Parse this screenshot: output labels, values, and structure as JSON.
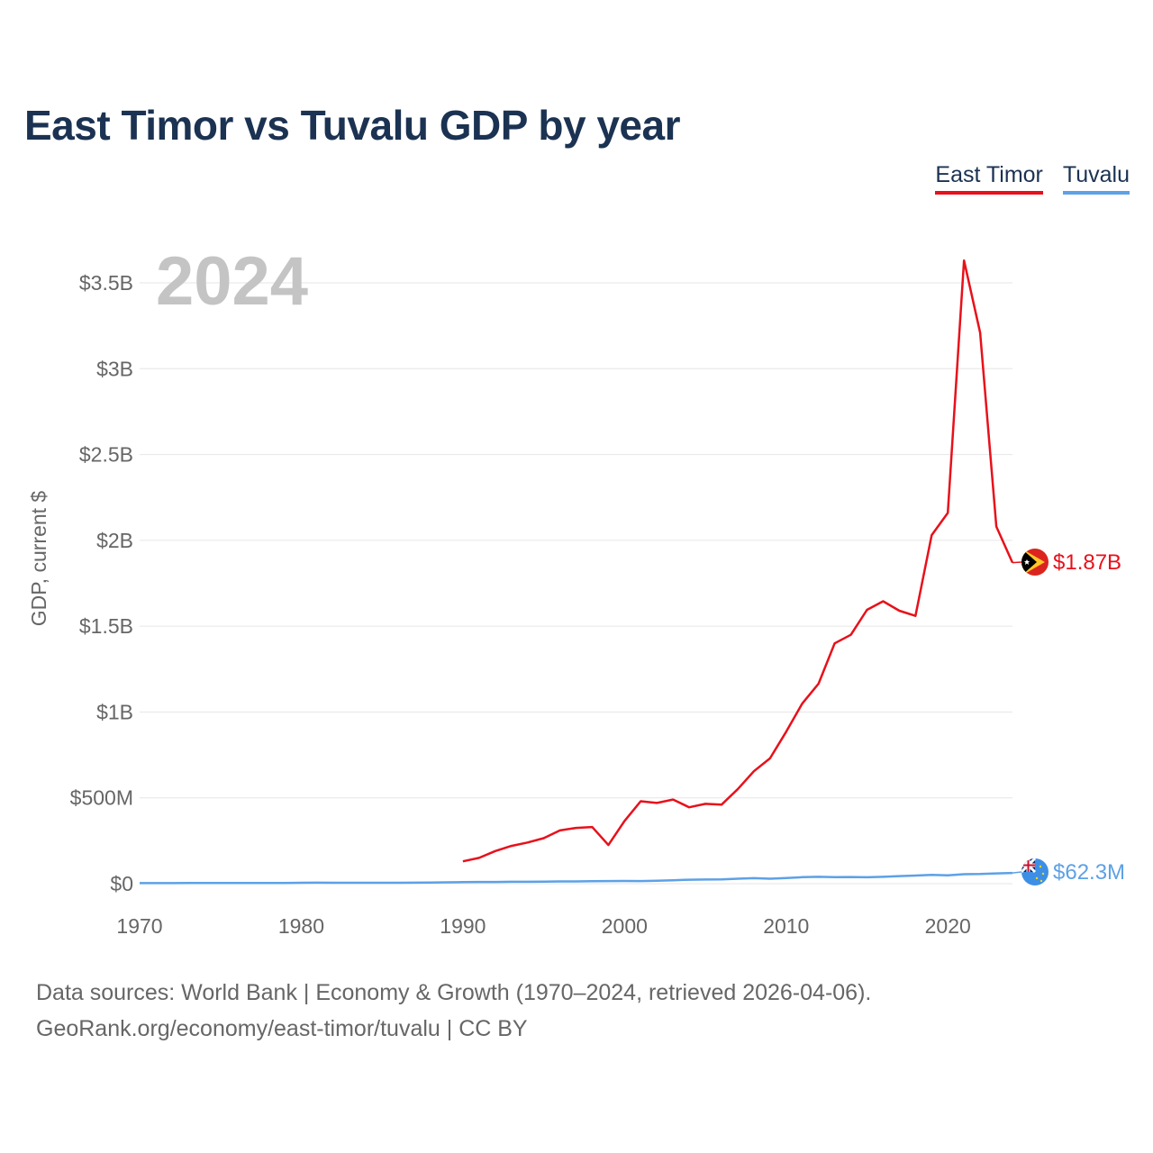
{
  "title": "East Timor vs Tuvalu GDP by year",
  "legend": [
    {
      "label": "East Timor",
      "color": "#e8101a"
    },
    {
      "label": "Tuvalu",
      "color": "#5da1e6"
    }
  ],
  "year_label": "2024",
  "end_labels": {
    "east_timor": "$1.87B",
    "tuvalu": "$62.3M"
  },
  "flags": {
    "east_timor": "east-timor-flag-icon",
    "tuvalu": "tuvalu-flag-icon"
  },
  "source": {
    "line1": "Data sources: World Bank | Economy & Growth (1970–2024, retrieved 2026-04-06).",
    "line2": "GeoRank.org/economy/east-timor/tuvalu | CC BY"
  },
  "chart_data": {
    "type": "line",
    "ylabel": "GDP, current $",
    "xlim": [
      1970,
      2024
    ],
    "ylim": [
      0,
      3500
    ],
    "y_unit": "million USD",
    "x_ticks": [
      {
        "value": 1970,
        "label": "1970"
      },
      {
        "value": 1980,
        "label": "1980"
      },
      {
        "value": 1990,
        "label": "1990"
      },
      {
        "value": 2000,
        "label": "2000"
      },
      {
        "value": 2010,
        "label": "2010"
      },
      {
        "value": 2020,
        "label": "2020"
      }
    ],
    "y_ticks": [
      {
        "value": 0,
        "label": "$0"
      },
      {
        "value": 500,
        "label": "$500M"
      },
      {
        "value": 1000,
        "label": "$1B"
      },
      {
        "value": 1500,
        "label": "$1.5B"
      },
      {
        "value": 2000,
        "label": "$2B"
      },
      {
        "value": 2500,
        "label": "$2.5B"
      },
      {
        "value": 3000,
        "label": "$3B"
      },
      {
        "value": 3500,
        "label": "$3.5B"
      }
    ],
    "series": [
      {
        "name": "East Timor",
        "key": "east_timor",
        "color": "#e8101a",
        "x": [
          1990,
          1991,
          1992,
          1993,
          1994,
          1995,
          1996,
          1997,
          1998,
          1999,
          2000,
          2001,
          2002,
          2003,
          2004,
          2005,
          2006,
          2007,
          2008,
          2009,
          2010,
          2011,
          2012,
          2013,
          2014,
          2015,
          2016,
          2017,
          2018,
          2019,
          2020,
          2021,
          2022,
          2023,
          2024
        ],
        "values": [
          130,
          150,
          190,
          220,
          240,
          265,
          310,
          325,
          330,
          225,
          365,
          480,
          470,
          490,
          445,
          465,
          460,
          550,
          655,
          730,
          885,
          1050,
          1165,
          1400,
          1450,
          1595,
          1645,
          1590,
          1560,
          2030,
          2160,
          3630,
          3210,
          2080,
          1870
        ]
      },
      {
        "name": "Tuvalu",
        "key": "tuvalu",
        "color": "#5da1e6",
        "x": [
          1970,
          1971,
          1972,
          1973,
          1974,
          1975,
          1976,
          1977,
          1978,
          1979,
          1980,
          1981,
          1982,
          1983,
          1984,
          1985,
          1986,
          1987,
          1988,
          1989,
          1990,
          1991,
          1992,
          1993,
          1994,
          1995,
          1996,
          1997,
          1998,
          1999,
          2000,
          2001,
          2002,
          2003,
          2004,
          2005,
          2006,
          2007,
          2008,
          2009,
          2010,
          2011,
          2012,
          2013,
          2014,
          2015,
          2016,
          2017,
          2018,
          2019,
          2020,
          2021,
          2022,
          2023,
          2024
        ],
        "values": [
          3,
          3,
          3,
          4,
          4,
          4,
          4,
          4,
          4,
          4,
          5,
          6,
          5,
          5,
          5,
          5,
          5,
          6,
          7,
          8,
          9,
          10,
          10,
          11,
          11,
          12,
          13,
          13,
          14,
          15,
          16,
          15,
          17,
          20,
          23,
          24,
          25,
          29,
          32,
          29,
          33,
          38,
          40,
          38,
          39,
          37,
          40,
          44,
          47,
          51,
          49,
          55,
          56,
          60,
          62.3
        ]
      }
    ]
  }
}
